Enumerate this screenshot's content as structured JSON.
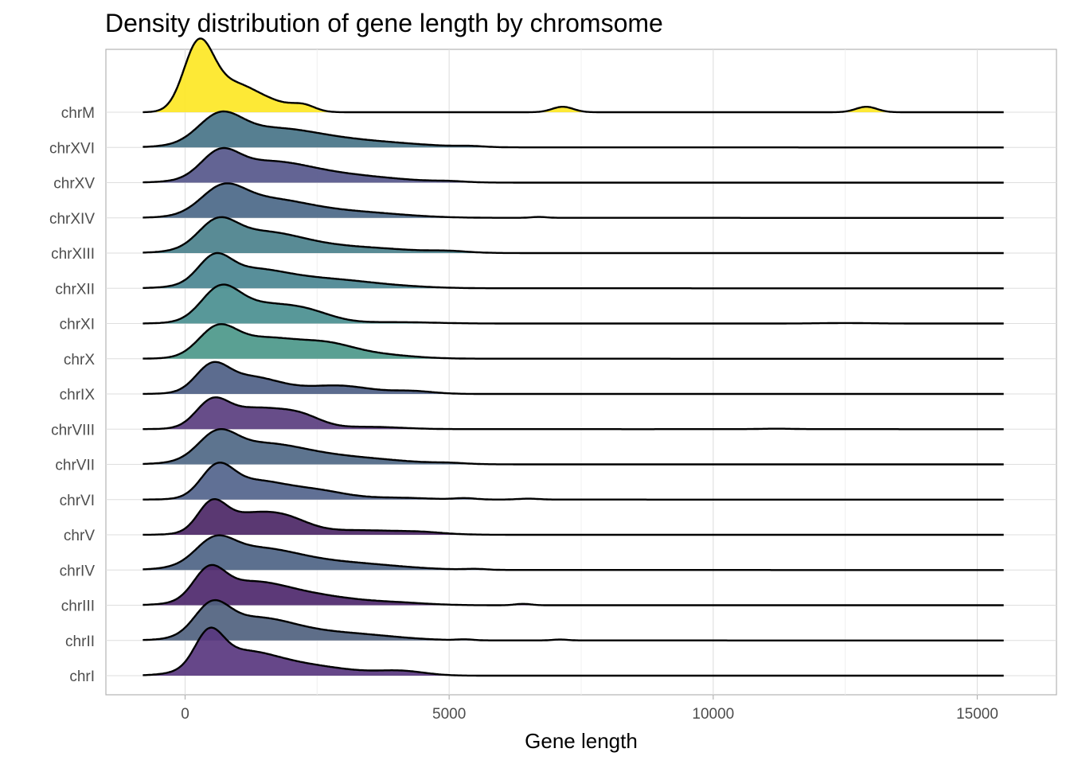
{
  "chart_data": {
    "type": "ridgeline",
    "title": "Density distribution of gene length by chromsome",
    "xlabel": "Gene length",
    "ylabel": "",
    "xlim": [
      -1500,
      16500
    ],
    "x_ticks": [
      0,
      5000,
      10000,
      15000
    ],
    "x_tick_labels": [
      "0",
      "5000",
      "10000",
      "15000"
    ],
    "grid": true,
    "legend": "none",
    "categories": [
      "chrI",
      "chrII",
      "chrIII",
      "chrIV",
      "chrV",
      "chrVI",
      "chrVII",
      "chrVIII",
      "chrIX",
      "chrX",
      "chrXI",
      "chrXII",
      "chrXIII",
      "chrXIV",
      "chrXV",
      "chrXVI",
      "chrM"
    ],
    "series": [
      {
        "fill": "#59377f",
        "peaks": [
          [
            450,
            0.7,
            260
          ],
          [
            1000,
            0.45,
            650
          ],
          [
            2200,
            0.22,
            900
          ],
          [
            4100,
            0.09,
            450
          ]
        ]
      },
      {
        "fill": "#50627f",
        "peaks": [
          [
            500,
            0.6,
            320
          ],
          [
            1300,
            0.48,
            750
          ],
          [
            3000,
            0.15,
            900
          ],
          [
            5300,
            0.02,
            150
          ],
          [
            7100,
            0.02,
            150
          ]
        ]
      },
      {
        "fill": "#4e286c",
        "peaks": [
          [
            450,
            0.6,
            290
          ],
          [
            1200,
            0.48,
            700
          ],
          [
            2500,
            0.18,
            750
          ],
          [
            4000,
            0.05,
            600
          ],
          [
            6400,
            0.03,
            150
          ]
        ]
      },
      {
        "fill": "#4e6485",
        "peaks": [
          [
            550,
            0.45,
            350
          ],
          [
            1300,
            0.45,
            800
          ],
          [
            3000,
            0.15,
            1000
          ],
          [
            5500,
            0.02,
            200
          ]
        ]
      },
      {
        "fill": "#4c2766",
        "peaks": [
          [
            500,
            0.55,
            260
          ],
          [
            1100,
            0.4,
            550
          ],
          [
            1900,
            0.28,
            450
          ],
          [
            3300,
            0.1,
            900
          ],
          [
            4500,
            0.03,
            400
          ]
        ]
      },
      {
        "fill": "#52648c",
        "peaks": [
          [
            600,
            0.6,
            300
          ],
          [
            1300,
            0.4,
            600
          ],
          [
            2500,
            0.18,
            550
          ],
          [
            4000,
            0.04,
            600
          ],
          [
            5300,
            0.03,
            200
          ],
          [
            6500,
            0.02,
            200
          ]
        ]
      },
      {
        "fill": "#4f6886",
        "peaks": [
          [
            600,
            0.5,
            350
          ],
          [
            1400,
            0.42,
            800
          ],
          [
            3000,
            0.15,
            1000
          ],
          [
            5000,
            0.02,
            300
          ]
        ]
      },
      {
        "fill": "#5a3e7f",
        "peaks": [
          [
            500,
            0.5,
            300
          ],
          [
            1300,
            0.45,
            600
          ],
          [
            2200,
            0.22,
            400
          ],
          [
            3500,
            0.05,
            600
          ],
          [
            11200,
            0.01,
            300
          ]
        ]
      },
      {
        "fill": "#4e5f86",
        "peaks": [
          [
            500,
            0.5,
            300
          ],
          [
            1200,
            0.38,
            600
          ],
          [
            2900,
            0.18,
            600
          ],
          [
            4300,
            0.06,
            400
          ]
        ]
      },
      {
        "fill": "#4c988a",
        "peaks": [
          [
            600,
            0.55,
            350
          ],
          [
            1500,
            0.45,
            700
          ],
          [
            2700,
            0.22,
            500
          ],
          [
            3500,
            0.1,
            700
          ]
        ]
      },
      {
        "fill": "#4a8f90",
        "peaks": [
          [
            650,
            0.6,
            350
          ],
          [
            1300,
            0.4,
            650
          ],
          [
            2300,
            0.22,
            500
          ],
          [
            4000,
            0.03,
            700
          ],
          [
            12500,
            0.01,
            500
          ]
        ]
      },
      {
        "fill": "#4a8691",
        "peaks": [
          [
            550,
            0.5,
            300
          ],
          [
            1200,
            0.4,
            700
          ],
          [
            2700,
            0.18,
            800
          ],
          [
            4000,
            0.03,
            700
          ]
        ]
      },
      {
        "fill": "#4b818c",
        "peaks": [
          [
            600,
            0.5,
            350
          ],
          [
            1400,
            0.45,
            800
          ],
          [
            3200,
            0.12,
            1000
          ],
          [
            5000,
            0.03,
            350
          ]
        ]
      },
      {
        "fill": "#4b6888",
        "peaks": [
          [
            700,
            0.5,
            400
          ],
          [
            1500,
            0.4,
            800
          ],
          [
            3200,
            0.12,
            900
          ],
          [
            6700,
            0.02,
            150
          ]
        ]
      },
      {
        "fill": "#56578b",
        "peaks": [
          [
            650,
            0.5,
            350
          ],
          [
            1500,
            0.42,
            800
          ],
          [
            3000,
            0.15,
            1000
          ],
          [
            5000,
            0.02,
            300
          ]
        ]
      },
      {
        "fill": "#487488",
        "peaks": [
          [
            650,
            0.55,
            400
          ],
          [
            1600,
            0.4,
            900
          ],
          [
            3400,
            0.12,
            1000
          ],
          [
            5400,
            0.02,
            250
          ]
        ]
      },
      {
        "fill": "#fde725",
        "peaks": [
          [
            250,
            1.4,
            280
          ],
          [
            900,
            0.6,
            450
          ],
          [
            1700,
            0.15,
            400
          ],
          [
            2250,
            0.12,
            220
          ],
          [
            7150,
            0.12,
            200
          ],
          [
            12900,
            0.12,
            200
          ]
        ]
      }
    ]
  }
}
